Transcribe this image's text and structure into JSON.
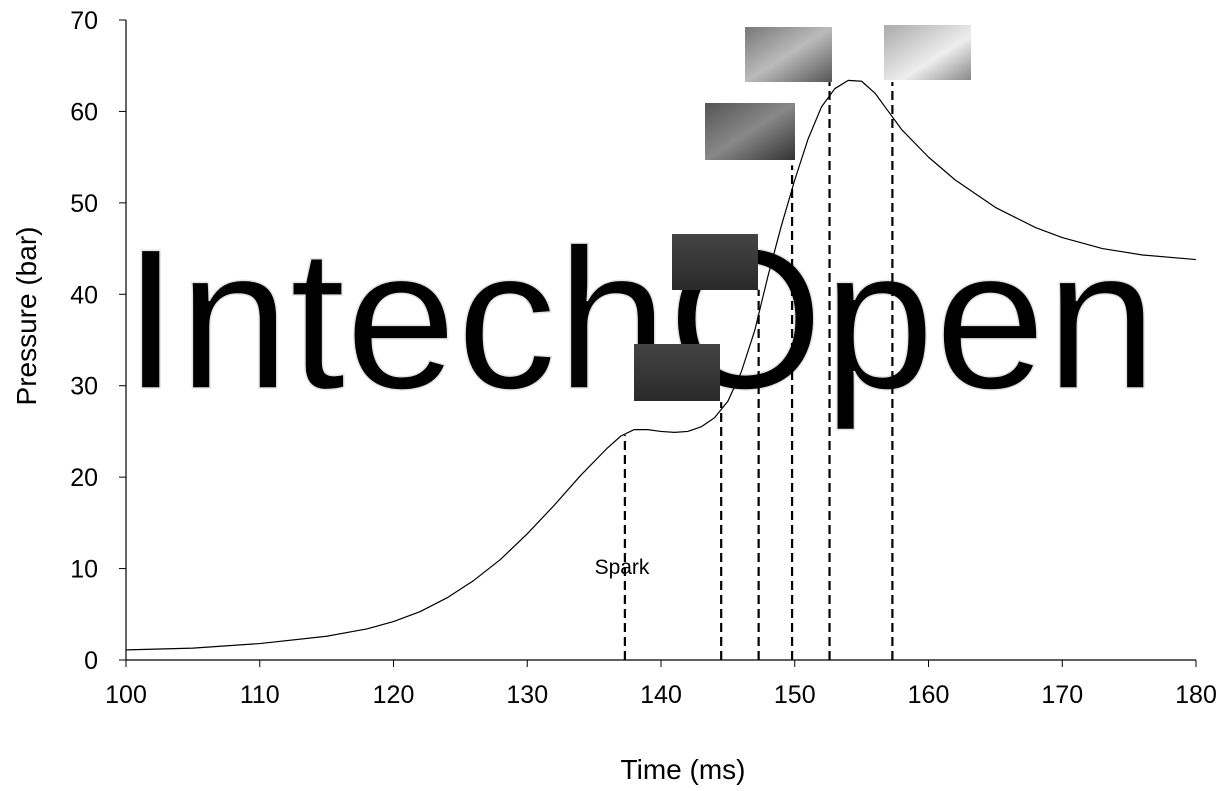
{
  "chart_data": {
    "type": "line",
    "watermark": "IntechOpen",
    "xlabel": "Time (ms)",
    "ylabel": "Pressure (bar)",
    "annotation": "Spark",
    "color": "#000000",
    "xlim": [
      100,
      180
    ],
    "ylim": [
      0,
      70
    ],
    "xticks": [
      100,
      110,
      120,
      130,
      140,
      150,
      160,
      170,
      180
    ],
    "yticks": [
      0,
      10,
      20,
      30,
      40,
      50,
      60,
      70
    ],
    "x": [
      100,
      105,
      110,
      115,
      118,
      120,
      122,
      124,
      126,
      128,
      130,
      132,
      134,
      136,
      137,
      138,
      139,
      140,
      141,
      142,
      143,
      144,
      145,
      146,
      147,
      148,
      149,
      150,
      151,
      152,
      153,
      154,
      155,
      156,
      157,
      158,
      160,
      162,
      165,
      168,
      170,
      173,
      176,
      180
    ],
    "values": [
      1.1,
      1.3,
      1.8,
      2.6,
      3.4,
      4.2,
      5.3,
      6.8,
      8.7,
      11.0,
      13.8,
      16.9,
      20.2,
      23.2,
      24.5,
      25.2,
      25.2,
      25.0,
      24.9,
      25.0,
      25.5,
      26.5,
      28.3,
      31.5,
      36,
      42,
      47.5,
      52.5,
      57,
      60.5,
      62.5,
      63.4,
      63.3,
      62.0,
      60.0,
      58.0,
      55.0,
      52.5,
      49.5,
      47.3,
      46.2,
      45.0,
      44.3,
      43.8
    ],
    "event_lines": [
      {
        "x": 137.3,
        "top": 24.6
      },
      {
        "x": 144.5,
        "top": 28.2
      },
      {
        "x": 147.3,
        "top": 40.5
      },
      {
        "x": 149.8,
        "top": 54.1
      },
      {
        "x": 152.6,
        "top": 63.2
      },
      {
        "x": 157.3,
        "top": 63.2
      }
    ]
  }
}
